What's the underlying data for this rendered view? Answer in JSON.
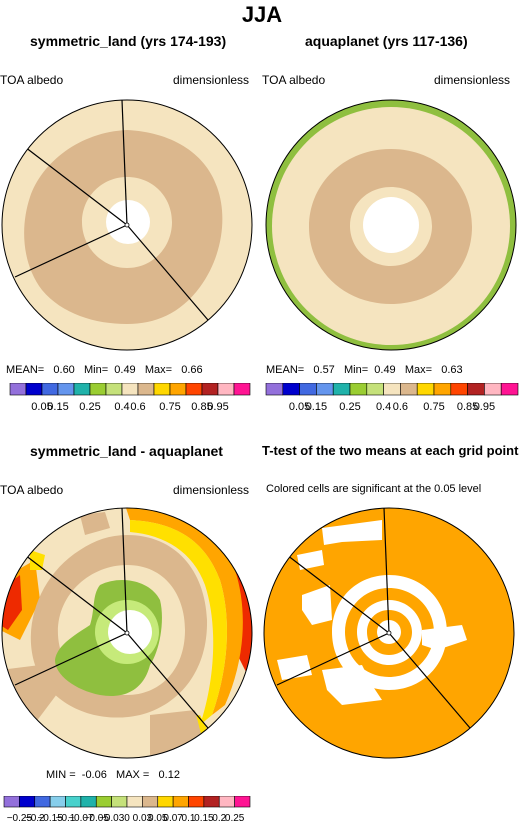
{
  "figure_title": "JJA",
  "colors": {
    "cream": "#f5e4bf",
    "tan": "#dbb78d",
    "green": "#8fbf3f",
    "lightgreen": "#c6ea7a",
    "yellow": "#ffe000",
    "orange": "#ffa500",
    "darkorange": "#ff6a00",
    "red": "#ee2a00",
    "white": "#ffffff"
  },
  "panels": {
    "p1": {
      "title": "symmetric_land (yrs 174-193)",
      "left_label": "TOA albedo",
      "right_label": "dimensionless",
      "stats": {
        "mean_label": "MEAN=",
        "mean": "0.60",
        "min_label": "Min=",
        "min": "0.49",
        "max_label": "Max=",
        "max": "0.66"
      }
    },
    "p2": {
      "title": "aquaplanet (yrs 117-136)",
      "left_label": "TOA albedo",
      "right_label": "dimensionless",
      "stats": {
        "mean_label": "MEAN=",
        "mean": "0.57",
        "min_label": "Min=",
        "min": "0.49",
        "max_label": "Max=",
        "max": "0.63"
      }
    },
    "p3": {
      "title": "symmetric_land - aquaplanet",
      "left_label": "TOA albedo",
      "right_label": "dimensionless",
      "stats": {
        "min_label": "MIN =",
        "min": "-0.06",
        "max_label": "MAX =",
        "max": "0.12"
      }
    },
    "p4": {
      "title": "T-test of the two means at each grid point",
      "subtitle": "Colored cells are significant at the 0.05 level"
    }
  },
  "colorbar_top": {
    "colors": [
      "#9370db",
      "#0000cd",
      "#4169e1",
      "#6495ed",
      "#20b2aa",
      "#9acd32",
      "#c5e17a",
      "#f5e4bf",
      "#dbb78d",
      "#ffd700",
      "#ffa500",
      "#ff4500",
      "#b22222",
      "#ffb6c1",
      "#ff1493"
    ],
    "labels": [
      "0.05",
      "0.15",
      "0.25",
      "0.4",
      "0.6",
      "0.75",
      "0.85",
      "0.95"
    ]
  },
  "colorbar_diff": {
    "colors": [
      "#9370db",
      "#0000cd",
      "#4169e1",
      "#87ceeb",
      "#48d1cc",
      "#20b2aa",
      "#9acd32",
      "#c5e17a",
      "#f5e4bf",
      "#dbb78d",
      "#ffd700",
      "#ffa500",
      "#ff4500",
      "#b22222",
      "#ffb6c1",
      "#ff1493"
    ],
    "labels": [
      "−0.25",
      "−0.2",
      "−0.15",
      "−0.1",
      "−0.07",
      "−0.05",
      "−0.03",
      "0",
      "0.03",
      "0.05",
      "0.07",
      "0.1",
      "0.15",
      "0.2",
      "0.25"
    ]
  }
}
